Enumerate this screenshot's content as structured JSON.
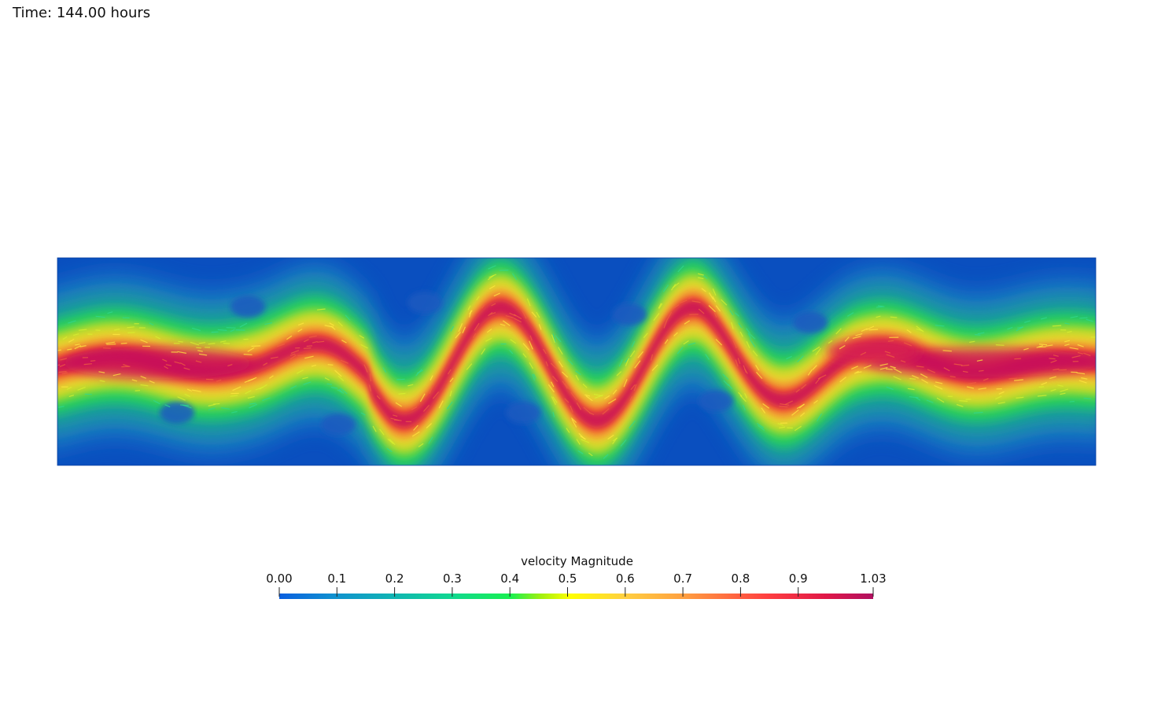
{
  "header": {
    "time_label": "Time: 144.00 hours"
  },
  "field": {
    "variable": "velocity Magnitude",
    "colormap": "jet-like (blue-cyan-green-yellow-orange-red-magenta)",
    "wave_crests": 4,
    "background_color": "#0a4fbf",
    "jet_core_color": "#c8105a"
  },
  "colorbar": {
    "title": "velocity Magnitude",
    "range": [
      0.0,
      1.03
    ],
    "tick_labels": [
      "0.00",
      "0.1",
      "0.2",
      "0.3",
      "0.4",
      "0.5",
      "0.6",
      "0.7",
      "0.8",
      "0.9",
      "1.03"
    ],
    "tick_values": [
      0.0,
      0.1,
      0.2,
      0.3,
      0.4,
      0.5,
      0.6,
      0.7,
      0.8,
      0.9,
      1.03
    ],
    "colors": [
      "#0a5fe0",
      "#1090d0",
      "#10b4b4",
      "#10d890",
      "#18f050",
      "#c0f000",
      "#ffff00",
      "#ffd040",
      "#ffa040",
      "#ff5040",
      "#e01848",
      "#b01060"
    ]
  }
}
